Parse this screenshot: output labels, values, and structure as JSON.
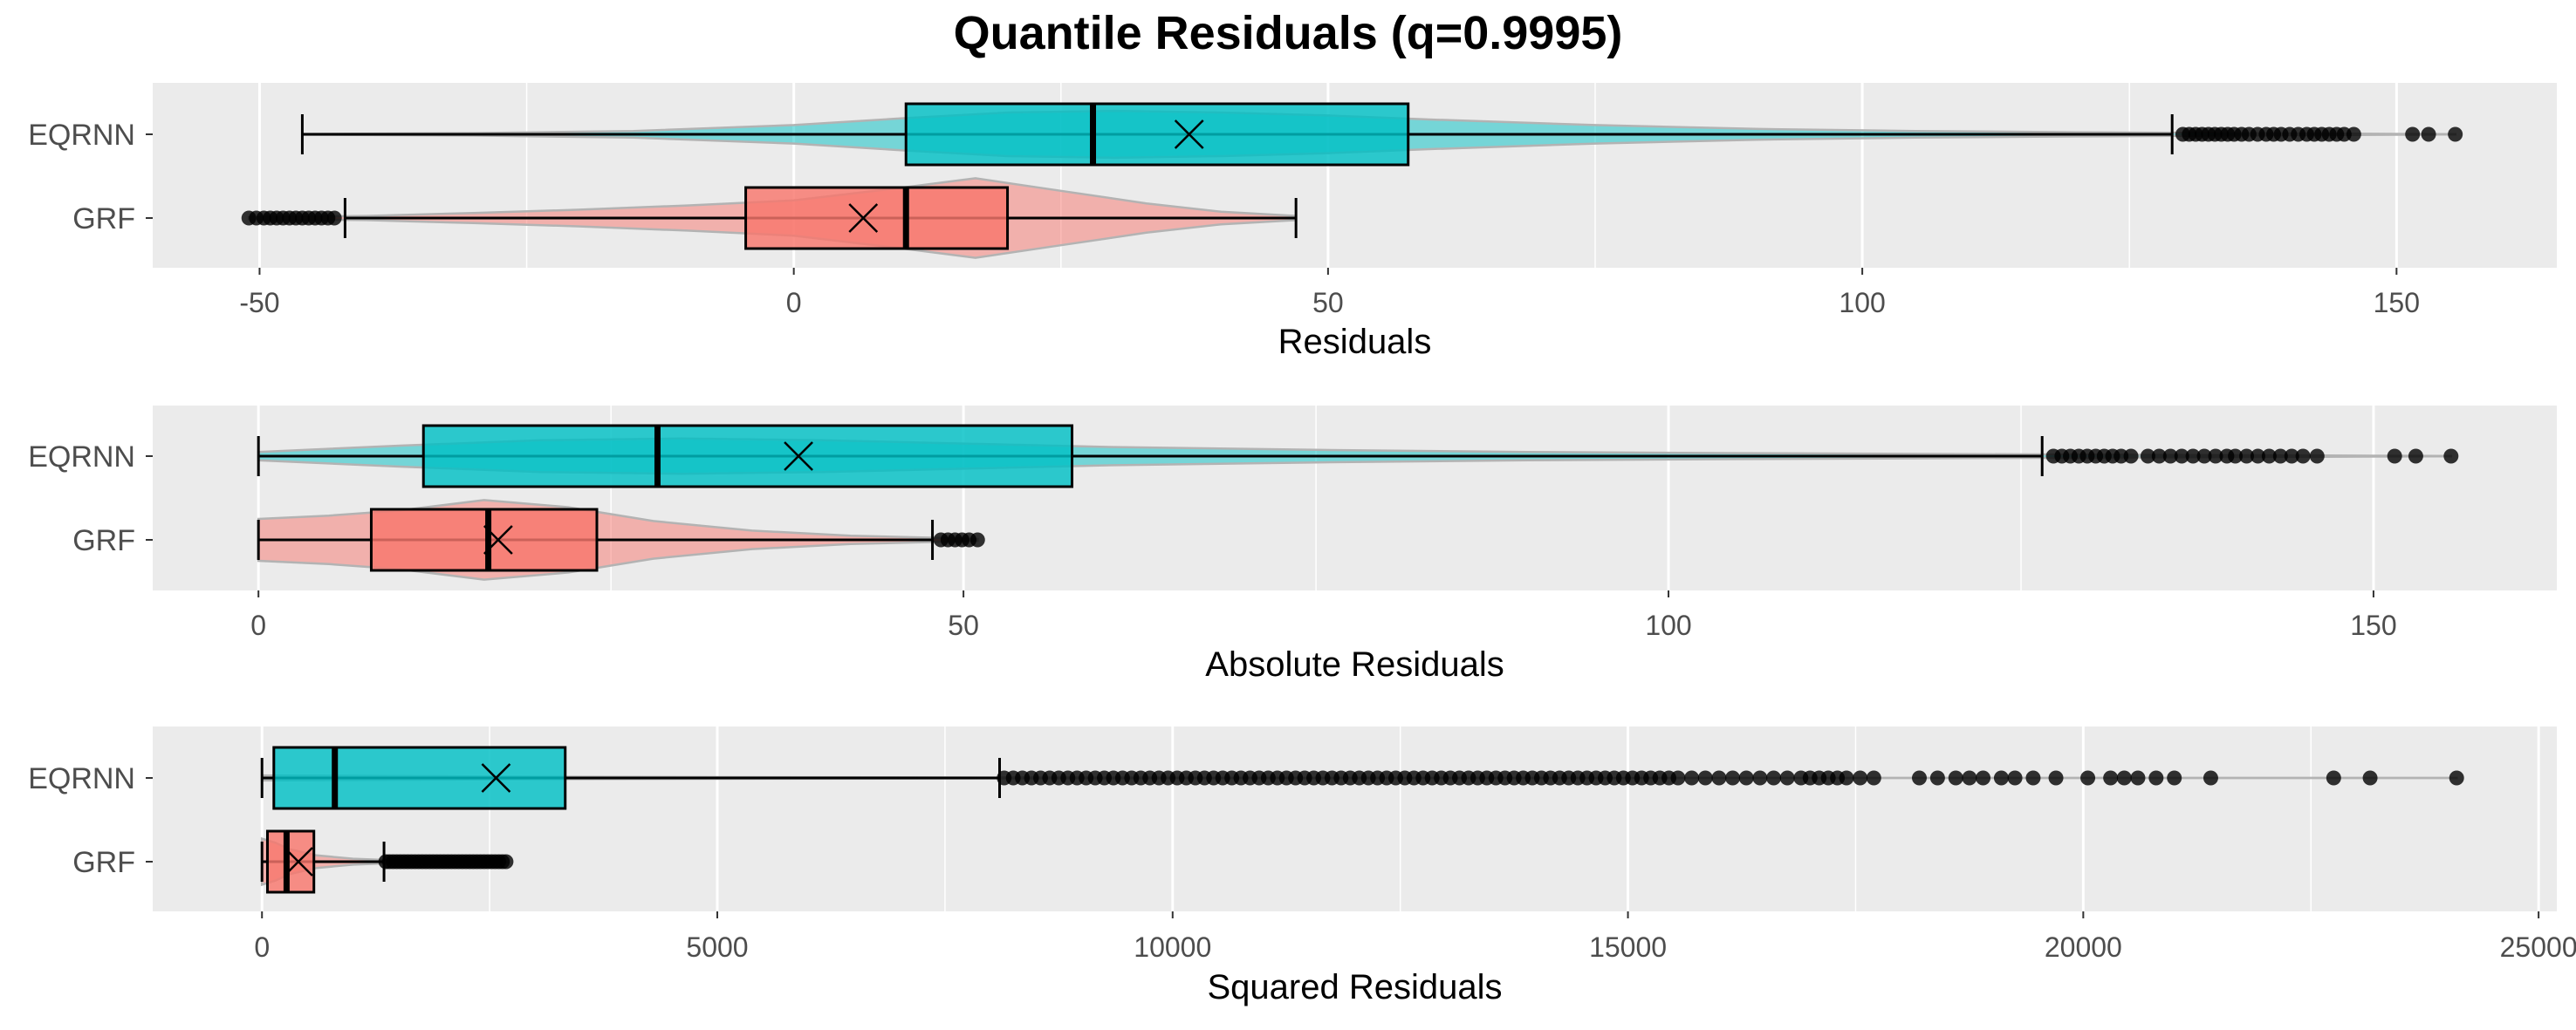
{
  "title": "Quantile Residuals (q=0.9995)",
  "colors": {
    "panel_bg": "#EBEBEB",
    "grid": "#FFFFFF",
    "EQRNN": "#00BFC4",
    "GRF": "#F8766D",
    "violin_outline": "#B3B3B3",
    "outlier": "#000000"
  },
  "chart_data": [
    {
      "type": "boxplot",
      "orientation": "horizontal",
      "xlabel": "Residuals",
      "xlim": [
        -60,
        165
      ],
      "ticks": [
        -50,
        0,
        50,
        100,
        150
      ],
      "tick_labels": [
        "-50",
        "0",
        "50",
        "100",
        "150"
      ],
      "minor_ticks": [
        -25,
        25,
        75,
        125
      ],
      "categories": [
        "EQRNN",
        "GRF"
      ],
      "series": [
        {
          "name": "EQRNN",
          "whisker_low": -46,
          "q1": 10.5,
          "median": 28,
          "q3": 57.5,
          "whisker_high": 129,
          "mean": 37,
          "outliers": [
            130,
            130.6,
            131.2,
            131.8,
            132.4,
            133,
            133.6,
            134.2,
            134.8,
            135.5,
            136.2,
            137,
            137.8,
            138.5,
            139.2,
            140,
            140.8,
            141.6,
            142.3,
            143,
            143.7,
            144.4,
            145.1,
            146,
            151.5,
            153,
            155.5
          ],
          "violin": [
            [
              -46,
              0.01
            ],
            [
              -30,
              0.03
            ],
            [
              -15,
              0.08
            ],
            [
              0,
              0.22
            ],
            [
              10,
              0.38
            ],
            [
              20,
              0.52
            ],
            [
              30,
              0.56
            ],
            [
              40,
              0.52
            ],
            [
              50,
              0.45
            ],
            [
              60,
              0.35
            ],
            [
              75,
              0.22
            ],
            [
              90,
              0.13
            ],
            [
              105,
              0.08
            ],
            [
              120,
              0.05
            ],
            [
              135,
              0.03
            ],
            [
              150,
              0.01
            ],
            [
              155.5,
              0.005
            ]
          ]
        },
        {
          "name": "GRF",
          "whisker_low": -42,
          "q1": -4.5,
          "median": 10.5,
          "q3": 20,
          "whisker_high": 47,
          "mean": 6.5,
          "outliers": [
            -51,
            -50.3,
            -49.6,
            -49,
            -48.4,
            -47.8,
            -47.2,
            -46.6,
            -46,
            -45.4,
            -44.8,
            -44.2,
            -43.6,
            -43
          ],
          "violin": [
            [
              -51,
              0.02
            ],
            [
              -40,
              0.05
            ],
            [
              -30,
              0.12
            ],
            [
              -20,
              0.2
            ],
            [
              -10,
              0.3
            ],
            [
              0,
              0.42
            ],
            [
              10,
              0.72
            ],
            [
              17,
              0.95
            ],
            [
              25,
              0.65
            ],
            [
              33,
              0.35
            ],
            [
              40,
              0.15
            ],
            [
              47,
              0.05
            ]
          ]
        }
      ]
    },
    {
      "type": "boxplot",
      "orientation": "horizontal",
      "xlabel": "Absolute Residuals",
      "xlim": [
        -7.5,
        163
      ],
      "ticks": [
        0,
        50,
        100,
        150
      ],
      "tick_labels": [
        "0",
        "50",
        "100",
        "150"
      ],
      "minor_ticks": [
        25,
        75,
        125
      ],
      "categories": [
        "EQRNN",
        "GRF"
      ],
      "series": [
        {
          "name": "EQRNN",
          "whisker_low": 0,
          "q1": 11.7,
          "median": 28.3,
          "q3": 57.7,
          "whisker_high": 126.5,
          "mean": 38.3,
          "outliers": [
            127.3,
            127.9,
            128.5,
            129.1,
            129.7,
            130.3,
            130.9,
            131.5,
            132.1,
            132.8,
            134,
            134.8,
            135.6,
            136.4,
            137.2,
            138,
            138.8,
            139.6,
            140.2,
            141,
            141.8,
            142.6,
            143.4,
            144.2,
            145,
            146,
            151.5,
            153,
            155.5
          ],
          "violin": [
            [
              0,
              0.1
            ],
            [
              10,
              0.25
            ],
            [
              20,
              0.38
            ],
            [
              30,
              0.42
            ],
            [
              40,
              0.38
            ],
            [
              50,
              0.3
            ],
            [
              60,
              0.22
            ],
            [
              75,
              0.15
            ],
            [
              90,
              0.1
            ],
            [
              105,
              0.07
            ],
            [
              120,
              0.05
            ],
            [
              135,
              0.03
            ],
            [
              150,
              0.01
            ],
            [
              155.5,
              0.005
            ]
          ]
        },
        {
          "name": "GRF",
          "whisker_low": 0,
          "q1": 8,
          "median": 16.3,
          "q3": 24,
          "whisker_high": 47.8,
          "mean": 17,
          "outliers": [
            48.4,
            48.9,
            49.4,
            49.9,
            50.4,
            51
          ],
          "violin": [
            [
              0,
              0.5
            ],
            [
              5,
              0.58
            ],
            [
              10,
              0.7
            ],
            [
              16,
              0.95
            ],
            [
              22,
              0.78
            ],
            [
              28,
              0.45
            ],
            [
              35,
              0.22
            ],
            [
              42,
              0.1
            ],
            [
              48,
              0.05
            ],
            [
              51,
              0.02
            ]
          ]
        }
      ]
    },
    {
      "type": "boxplot",
      "orientation": "horizontal",
      "xlabel": "Squared Residuals",
      "xlim": [
        -1200,
        25200
      ],
      "ticks": [
        0,
        5000,
        10000,
        15000,
        20000,
        25000
      ],
      "tick_labels": [
        "0",
        "5000",
        "10000",
        "15000",
        "20000",
        "25000"
      ],
      "minor_ticks": [
        2500,
        7500,
        12500,
        17500,
        22500
      ],
      "categories": [
        "EQRNN",
        "GRF"
      ],
      "series": [
        {
          "name": "EQRNN",
          "whisker_low": 0,
          "q1": 130,
          "median": 800,
          "q3": 3330,
          "whisker_high": 8100,
          "mean": 2570,
          "outliers": [
            8150,
            8250,
            8350,
            8450,
            8550,
            8650,
            8750,
            8850,
            8950,
            9050,
            9150,
            9250,
            9350,
            9450,
            9550,
            9650,
            9750,
            9850,
            9950,
            10050,
            10150,
            10250,
            10350,
            10450,
            10550,
            10650,
            10750,
            10850,
            10950,
            11050,
            11150,
            11250,
            11350,
            11450,
            11550,
            11650,
            11750,
            11850,
            11950,
            12050,
            12150,
            12250,
            12350,
            12450,
            12550,
            12650,
            12750,
            12850,
            12950,
            13050,
            13150,
            13250,
            13350,
            13450,
            13550,
            13650,
            13750,
            13850,
            13950,
            14050,
            14150,
            14250,
            14350,
            14450,
            14550,
            14650,
            14750,
            14850,
            14950,
            15050,
            15150,
            15250,
            15350,
            15450,
            15550,
            15700,
            15850,
            16000,
            16150,
            16300,
            16450,
            16600,
            16750,
            16900,
            17000,
            17100,
            17200,
            17300,
            17400,
            17550,
            17700,
            18200,
            18400,
            18600,
            18750,
            18900,
            19100,
            19250,
            19450,
            19700,
            20050,
            20300,
            20450,
            20600,
            20800,
            21000,
            21400,
            22750,
            23150,
            24100
          ],
          "violin": [
            [
              0,
              0.06
            ],
            [
              1000,
              0.05
            ],
            [
              3000,
              0.03
            ],
            [
              5000,
              0.02
            ],
            [
              8000,
              0.01
            ],
            [
              12000,
              0.005
            ],
            [
              24100,
              0.002
            ]
          ]
        },
        {
          "name": "GRF",
          "whisker_low": 0,
          "q1": 60,
          "median": 270,
          "q3": 570,
          "whisker_high": 1340,
          "mean": 400,
          "outliers": [
            1360,
            1400,
            1440,
            1480,
            1520,
            1560,
            1600,
            1640,
            1680,
            1720,
            1760,
            1800,
            1840,
            1880,
            1920,
            1960,
            2000,
            2040,
            2080,
            2120,
            2160,
            2200,
            2240,
            2280,
            2320,
            2360,
            2400,
            2440,
            2480,
            2520,
            2560,
            2600,
            2640,
            2680
          ],
          "violin": [
            [
              0,
              0.55
            ],
            [
              150,
              0.45
            ],
            [
              300,
              0.3
            ],
            [
              600,
              0.15
            ],
            [
              1000,
              0.07
            ],
            [
              1500,
              0.03
            ],
            [
              2000,
              0.015
            ],
            [
              2680,
              0.005
            ]
          ]
        }
      ]
    }
  ]
}
